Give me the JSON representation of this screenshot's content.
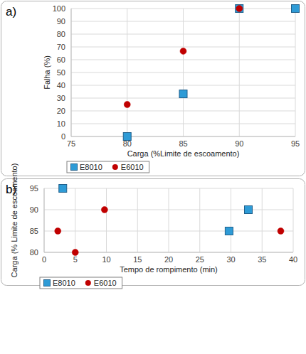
{
  "chart_data": [
    {
      "type": "scatter",
      "title": "a)",
      "x_label": "Carga (%Limite de escoamento)",
      "y_label": "Falha (%)",
      "xlim": [
        75,
        95
      ],
      "xticks": [
        75,
        80,
        85,
        90,
        95
      ],
      "ylim": [
        0,
        100
      ],
      "yticks": [
        0,
        10,
        20,
        30,
        40,
        50,
        60,
        70,
        80,
        90,
        100
      ],
      "grid": true,
      "legend": "bottom-left",
      "series": [
        {
          "name": "E8010",
          "color": "#2e9bd6",
          "marker": "square",
          "x": [
            80,
            85,
            90,
            95
          ],
          "values": [
            0,
            33.3,
            100,
            100
          ]
        },
        {
          "name": "E6010",
          "color": "#c00000",
          "marker": "circle",
          "x": [
            80,
            85,
            90
          ],
          "values": [
            25,
            66.7,
            100
          ]
        }
      ]
    },
    {
      "type": "scatter",
      "title": "b)",
      "x_label": "Tempo de rompimento (min)",
      "y_label": "Carga (% Limite de escoamento)",
      "xlim": [
        0,
        40
      ],
      "xticks": [
        0,
        5,
        10,
        15,
        20,
        25,
        30,
        35,
        40
      ],
      "ylim": [
        80,
        95
      ],
      "yticks": [
        80,
        85,
        90,
        95
      ],
      "grid": true,
      "legend": "bottom-left",
      "series": [
        {
          "name": "E8010",
          "color": "#2e9bd6",
          "marker": "square",
          "x": [
            3,
            29.7,
            32.8
          ],
          "values": [
            95,
            85,
            90
          ]
        },
        {
          "name": "E6010",
          "color": "#c00000",
          "marker": "circle",
          "x": [
            2.2,
            5,
            9.7,
            38
          ],
          "values": [
            85,
            80,
            90,
            85
          ]
        }
      ]
    }
  ]
}
